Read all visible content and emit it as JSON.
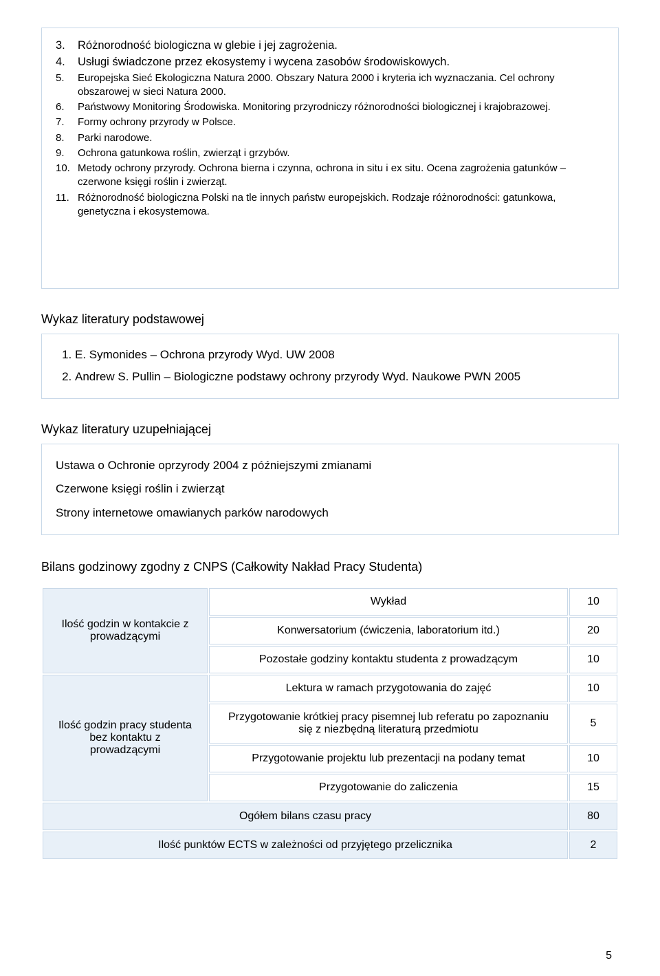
{
  "content_items": [
    {
      "n": "3.",
      "text": "Różnorodność biologiczna w glebie i jej zagrożenia.",
      "cls": "arial"
    },
    {
      "n": "4.",
      "text": "Usługi świadczone przez ekosystemy i wycena zasobów środowiskowych.",
      "cls": "arial"
    },
    {
      "n": "5.",
      "text": "Europejska Sieć Ekologiczna Natura 2000. Obszary Natura 2000 i kryteria ich wyznaczania. Cel ochrony obszarowej w sieci Natura 2000.",
      "cls": "verdana"
    },
    {
      "n": "6.",
      "text": "Państwowy Monitoring Środowiska. Monitoring przyrodniczy różnorodności biologicznej i krajobrazowej.",
      "cls": "verdana"
    },
    {
      "n": "7.",
      "text": "Formy ochrony przyrody w Polsce.",
      "cls": "verdana"
    },
    {
      "n": "8.",
      "text": "Parki narodowe.",
      "cls": "verdana"
    },
    {
      "n": "9.",
      "text": "Ochrona gatunkowa roślin, zwierząt i grzybów.",
      "cls": "verdana"
    },
    {
      "n": "10.",
      "text": "Metody ochrony przyrody. Ochrona bierna i czynna, ochrona in situ i ex situ. Ocena zagrożenia gatunków – czerwone księgi roślin i zwierząt.",
      "cls": "verdana"
    },
    {
      "n": "11.",
      "text": "Różnorodność biologiczna Polski na tle innych państw europejskich. Rodzaje różnorodności: gatunkowa, genetyczna i ekosystemowa.",
      "cls": "verdana"
    }
  ],
  "lit_primary_heading": "Wykaz literatury podstawowej",
  "lit_primary": [
    "E. Symonides – Ochrona przyrody Wyd. UW 2008",
    "Andrew S. Pullin – Biologiczne podstawy ochrony przyrody Wyd. Naukowe PWN 2005"
  ],
  "lit_supp_heading": "Wykaz literatury uzupełniającej",
  "lit_supp": [
    "Ustawa o Ochronie oprzyrody 2004 z późniejszymi zmianami",
    "Czerwone księgi roślin i zwierząt",
    "Strony internetowe omawianych parków narodowych"
  ],
  "bilans_heading": "Bilans godzinowy zgodny z CNPS (Całkowity Nakład Pracy Studenta)",
  "bilans": {
    "group1_label": "Ilość godzin w kontakcie z prowadzącymi",
    "group1_rows": [
      {
        "desc": "Wykład",
        "val": "10"
      },
      {
        "desc": "Konwersatorium (ćwiczenia, laboratorium itd.)",
        "val": "20"
      },
      {
        "desc": "Pozostałe godziny kontaktu studenta z prowadzącym",
        "val": "10"
      }
    ],
    "group2_label": "Ilość godzin pracy studenta bez kontaktu z prowadzącymi",
    "group2_rows": [
      {
        "desc": "Lektura w ramach przygotowania do zajęć",
        "val": "10"
      },
      {
        "desc": "Przygotowanie krótkiej pracy pisemnej lub referatu po zapoznaniu się z niezbędną literaturą przedmiotu",
        "val": "5"
      },
      {
        "desc": "Przygotowanie projektu lub prezentacji na podany temat",
        "val": "10"
      },
      {
        "desc": "Przygotowanie do zaliczenia",
        "val": "15"
      }
    ],
    "summary1": {
      "desc": "Ogółem bilans czasu pracy",
      "val": "80"
    },
    "summary2": {
      "desc": "Ilość punktów ECTS w zależności od przyjętego przelicznika",
      "val": "2"
    }
  },
  "page_number": "5",
  "colors": {
    "border": "#c8d8e8",
    "header_bg": "#e8f0f8",
    "text": "#000000",
    "background": "#ffffff"
  }
}
